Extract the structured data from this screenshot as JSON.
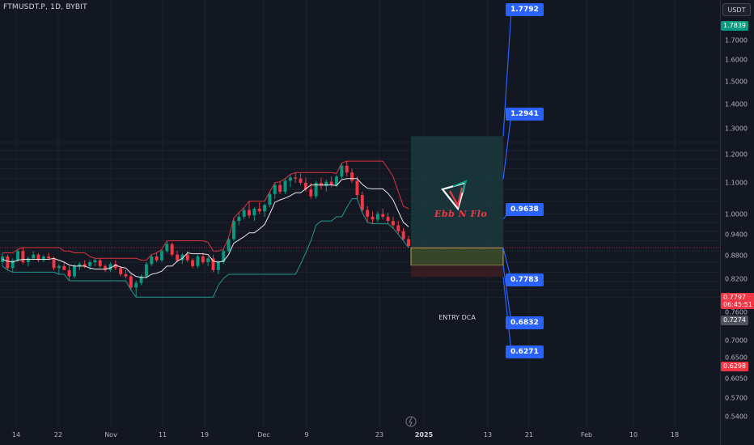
{
  "symbol_title": "FTMUSDT.P, 1D, BYBIT",
  "currency_button": "USDT",
  "logo_text": "Ebb N Flo",
  "entry_label": "ENTRY DCA",
  "targets": [
    {
      "label": "1.7792"
    },
    {
      "label": "1.2941"
    },
    {
      "label": "0.9638"
    },
    {
      "label": "0.7783"
    },
    {
      "label": "0.6832"
    },
    {
      "label": "0.6271"
    }
  ],
  "price_tags": [
    {
      "value": "1.7839",
      "color": "#089981"
    },
    {
      "value": "0.7797",
      "time": "06:45:51",
      "color": "#f23645"
    },
    {
      "value": "0.7274",
      "color": "#50535e"
    },
    {
      "value": "0.6298",
      "color": "#f23645"
    }
  ],
  "colors": {
    "background": "#131722",
    "bullish": "#089981",
    "bearish": "#f23645",
    "target_zone": "#1b3a3d",
    "entry_zone": "#3b4a2a",
    "stop_zone": "#3a1c22",
    "label_blue": "#2962ff"
  },
  "chart_data": {
    "type": "candlestick",
    "title": "FTMUSDT.P, 1D, BYBIT",
    "y_axis": {
      "scale": "log",
      "range": [
        0.52,
        1.86
      ],
      "ticks": [
        "1.7000",
        "1.6000",
        "1.5000",
        "1.4000",
        "1.3000",
        "1.2000",
        "1.1000",
        "1.0000",
        "0.9400",
        "0.8800",
        "0.8200",
        "0.7600",
        "0.7000",
        "0.6500",
        "0.6050",
        "0.5700",
        "0.5400"
      ]
    },
    "x_axis": {
      "ticks": [
        "14",
        "22",
        "Nov",
        "11",
        "19",
        "Dec",
        "9",
        "23",
        "2025",
        "13",
        "21",
        "Feb",
        "10",
        "18"
      ]
    },
    "candles": [
      [
        0.7,
        0.75,
        0.68,
        0.73
      ],
      [
        0.73,
        0.74,
        0.66,
        0.67
      ],
      [
        0.67,
        0.72,
        0.65,
        0.71
      ],
      [
        0.71,
        0.77,
        0.7,
        0.76
      ],
      [
        0.76,
        0.78,
        0.69,
        0.7
      ],
      [
        0.7,
        0.73,
        0.68,
        0.72
      ],
      [
        0.72,
        0.76,
        0.71,
        0.74
      ],
      [
        0.74,
        0.75,
        0.7,
        0.71
      ],
      [
        0.71,
        0.74,
        0.7,
        0.73
      ],
      [
        0.73,
        0.75,
        0.71,
        0.72
      ],
      [
        0.72,
        0.73,
        0.66,
        0.67
      ],
      [
        0.67,
        0.69,
        0.64,
        0.68
      ],
      [
        0.68,
        0.7,
        0.66,
        0.66
      ],
      [
        0.66,
        0.68,
        0.61,
        0.63
      ],
      [
        0.63,
        0.69,
        0.62,
        0.68
      ],
      [
        0.68,
        0.7,
        0.66,
        0.69
      ],
      [
        0.69,
        0.71,
        0.67,
        0.68
      ],
      [
        0.68,
        0.71,
        0.66,
        0.7
      ],
      [
        0.7,
        0.72,
        0.68,
        0.71
      ],
      [
        0.71,
        0.72,
        0.67,
        0.68
      ],
      [
        0.68,
        0.69,
        0.65,
        0.66
      ],
      [
        0.66,
        0.7,
        0.65,
        0.69
      ],
      [
        0.69,
        0.71,
        0.66,
        0.67
      ],
      [
        0.67,
        0.68,
        0.63,
        0.64
      ],
      [
        0.64,
        0.66,
        0.62,
        0.63
      ],
      [
        0.63,
        0.64,
        0.57,
        0.58
      ],
      [
        0.58,
        0.61,
        0.54,
        0.6
      ],
      [
        0.6,
        0.64,
        0.59,
        0.63
      ],
      [
        0.63,
        0.7,
        0.62,
        0.69
      ],
      [
        0.69,
        0.74,
        0.68,
        0.73
      ],
      [
        0.73,
        0.75,
        0.7,
        0.71
      ],
      [
        0.71,
        0.77,
        0.7,
        0.76
      ],
      [
        0.76,
        0.82,
        0.75,
        0.8
      ],
      [
        0.8,
        0.81,
        0.73,
        0.74
      ],
      [
        0.74,
        0.76,
        0.7,
        0.71
      ],
      [
        0.71,
        0.75,
        0.69,
        0.74
      ],
      [
        0.74,
        0.76,
        0.7,
        0.71
      ],
      [
        0.71,
        0.72,
        0.67,
        0.68
      ],
      [
        0.68,
        0.74,
        0.67,
        0.73
      ],
      [
        0.73,
        0.75,
        0.69,
        0.7
      ],
      [
        0.7,
        0.73,
        0.68,
        0.72
      ],
      [
        0.72,
        0.74,
        0.65,
        0.66
      ],
      [
        0.66,
        0.71,
        0.64,
        0.7
      ],
      [
        0.7,
        0.77,
        0.69,
        0.76
      ],
      [
        0.76,
        0.84,
        0.75,
        0.83
      ],
      [
        0.83,
        0.97,
        0.82,
        0.95
      ],
      [
        0.95,
        1.01,
        0.92,
        0.98
      ],
      [
        0.98,
        1.05,
        0.96,
        1.03
      ],
      [
        1.03,
        1.1,
        0.97,
        0.99
      ],
      [
        0.99,
        1.05,
        0.95,
        1.04
      ],
      [
        1.04,
        1.09,
        1.0,
        1.02
      ],
      [
        1.02,
        1.08,
        0.98,
        1.07
      ],
      [
        1.07,
        1.18,
        1.05,
        1.16
      ],
      [
        1.16,
        1.26,
        1.12,
        1.24
      ],
      [
        1.24,
        1.27,
        1.16,
        1.18
      ],
      [
        1.18,
        1.3,
        1.16,
        1.28
      ],
      [
        1.28,
        1.34,
        1.22,
        1.31
      ],
      [
        1.31,
        1.36,
        1.26,
        1.3
      ],
      [
        1.3,
        1.35,
        1.24,
        1.26
      ],
      [
        1.26,
        1.31,
        1.18,
        1.2
      ],
      [
        1.2,
        1.26,
        1.12,
        1.14
      ],
      [
        1.14,
        1.28,
        1.12,
        1.26
      ],
      [
        1.26,
        1.31,
        1.2,
        1.23
      ],
      [
        1.23,
        1.29,
        1.18,
        1.27
      ],
      [
        1.27,
        1.32,
        1.22,
        1.24
      ],
      [
        1.24,
        1.34,
        1.22,
        1.32
      ],
      [
        1.32,
        1.46,
        1.3,
        1.43
      ],
      [
        1.43,
        1.48,
        1.32,
        1.36
      ],
      [
        1.36,
        1.4,
        1.26,
        1.28
      ],
      [
        1.28,
        1.32,
        1.12,
        1.15
      ],
      [
        1.15,
        1.18,
        1.01,
        1.03
      ],
      [
        1.03,
        1.06,
        0.94,
        0.98
      ],
      [
        0.98,
        1.02,
        0.93,
        0.96
      ],
      [
        0.96,
        1.02,
        0.94,
        1.0
      ],
      [
        1.0,
        1.04,
        0.96,
        0.98
      ],
      [
        0.98,
        1.01,
        0.93,
        0.95
      ],
      [
        0.95,
        0.98,
        0.9,
        0.92
      ],
      [
        0.92,
        0.95,
        0.86,
        0.88
      ],
      [
        0.88,
        0.9,
        0.82,
        0.83
      ],
      [
        0.83,
        0.85,
        0.78,
        0.79
      ]
    ],
    "lines": [
      {
        "name": "",
        "color": "#f23645"
      },
      {
        "name": "",
        "color": "#ffffff"
      },
      {
        "name": "",
        "color": "#26a69a"
      }
    ],
    "position": {
      "targets": [
        1.7792,
        1.2941,
        0.9638
      ],
      "entry_top": 0.7783,
      "entry_bottom": 0.6832,
      "stop": 0.6271
    }
  }
}
